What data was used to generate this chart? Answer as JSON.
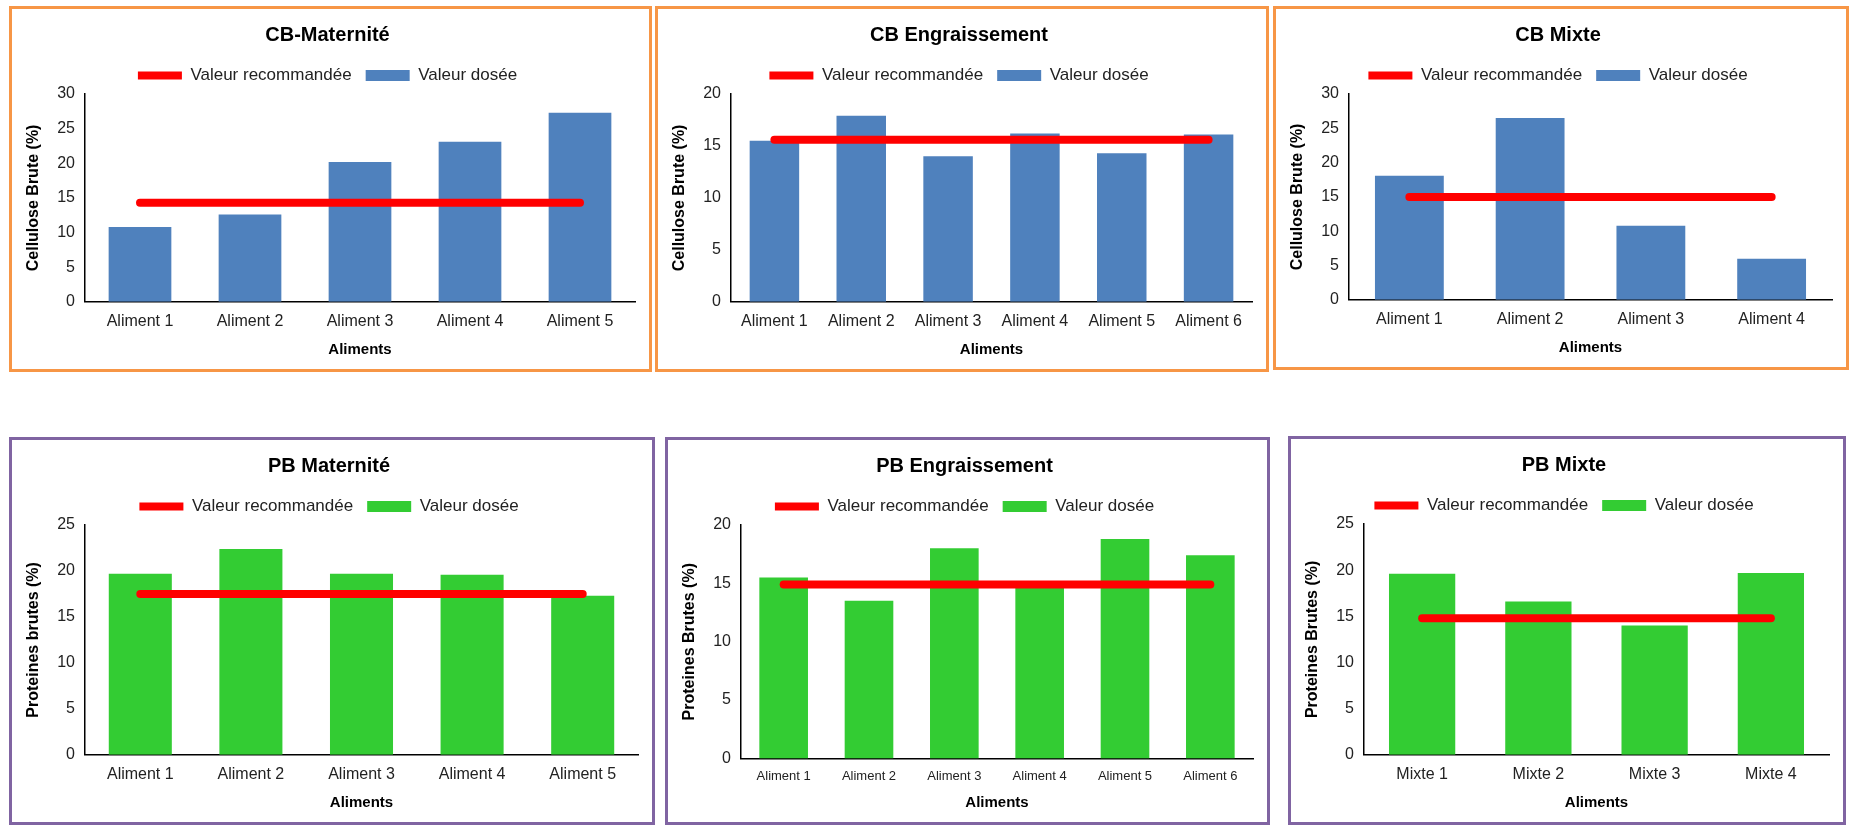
{
  "chart_data": [
    {
      "type": "bar",
      "title": "CB-Maternité",
      "xlabel": "Aliments",
      "ylabel": "Cellulose Brute (%)",
      "categories": [
        "Aliment 1",
        "Aliment 2",
        "Aliment 3",
        "Aliment 4",
        "Aliment 5"
      ],
      "series": [
        {
          "name": "Valeur dosée",
          "color": "#4f81bd",
          "values": [
            10.8,
            12.6,
            20.2,
            23.1,
            27.3
          ]
        },
        {
          "name": "Valeur recommandée",
          "type": "line",
          "color": "#ff0000",
          "values": [
            14.3,
            14.3,
            14.3,
            14.3,
            14.3
          ]
        }
      ],
      "ylim": [
        0,
        30
      ],
      "yticks": [
        0,
        5,
        10,
        15,
        20,
        25,
        30
      ],
      "legend": "top",
      "grid": false,
      "marker": "none"
    },
    {
      "type": "bar",
      "title": "CB Engraissement",
      "xlabel": "Aliments",
      "ylabel": "Cellulose Brute (%)",
      "categories": [
        "Aliment 1",
        "Aliment 2",
        "Aliment 3",
        "Aliment 4",
        "Aliment 5",
        "Aliment 6"
      ],
      "series": [
        {
          "name": "Valeur dosée",
          "color": "#4f81bd",
          "values": [
            15.5,
            17.9,
            14.0,
            16.2,
            14.3,
            16.1
          ]
        },
        {
          "name": "Valeur recommandée",
          "type": "line",
          "color": "#ff0000",
          "values": [
            15.6,
            15.6,
            15.6,
            15.6,
            15.6,
            15.6
          ]
        }
      ],
      "ylim": [
        0,
        20
      ],
      "yticks": [
        0,
        5,
        10,
        15,
        20
      ],
      "legend": "top",
      "grid": false,
      "marker": "none"
    },
    {
      "type": "bar",
      "title": "CB Mixte",
      "xlabel": "Aliments",
      "ylabel": "Cellulose Brute (%)",
      "categories": [
        "Aliment 1",
        "Aliment 2",
        "Aliment 3",
        "Aliment 4"
      ],
      "series": [
        {
          "name": "Valeur dosée",
          "color": "#4f81bd",
          "values": [
            18.1,
            26.5,
            10.8,
            6.0
          ]
        },
        {
          "name": "Valeur recommandée",
          "type": "line",
          "color": "#ff0000",
          "values": [
            15.0,
            15.0,
            15.0,
            15.0
          ]
        }
      ],
      "ylim": [
        0,
        30
      ],
      "yticks": [
        0,
        5,
        10,
        15,
        20,
        25,
        30
      ],
      "legend": "top",
      "grid": false,
      "marker": "none"
    },
    {
      "type": "bar",
      "title": "PB Maternité",
      "xlabel": "Aliments",
      "ylabel": "Proteines brutes (%)",
      "categories": [
        "Aliment 1",
        "Aliment 2",
        "Aliment 3",
        "Aliment 4",
        "Aliment 5"
      ],
      "series": [
        {
          "name": "Valeur dosée",
          "color": "#33cc33",
          "values": [
            19.7,
            22.4,
            19.7,
            19.6,
            17.3
          ]
        },
        {
          "name": "Valeur recommandée",
          "type": "line",
          "color": "#ff0000",
          "values": [
            17.5,
            17.5,
            17.5,
            17.5,
            17.5
          ]
        }
      ],
      "ylim": [
        0,
        25
      ],
      "yticks": [
        0,
        5,
        10,
        15,
        20,
        25
      ],
      "legend": "top",
      "grid": false,
      "marker": "none"
    },
    {
      "type": "bar",
      "title": "PB Engraissement",
      "xlabel": "Aliments",
      "ylabel": "Proteines Brutes (%)",
      "categories": [
        "Aliment 1",
        "Aliment 2",
        "Aliment 3",
        "Aliment 4",
        "Aliment 5",
        "Aliment 6"
      ],
      "series": [
        {
          "name": "Valeur dosée",
          "color": "#33cc33",
          "values": [
            15.5,
            13.5,
            18.0,
            14.8,
            18.8,
            17.4
          ]
        },
        {
          "name": "Valeur recommandée",
          "type": "line",
          "color": "#ff0000",
          "values": [
            14.9,
            14.9,
            14.9,
            14.9,
            14.9,
            14.9
          ]
        }
      ],
      "ylim": [
        0,
        20
      ],
      "yticks": [
        0,
        5,
        10,
        15,
        20
      ],
      "legend": "top",
      "grid": false,
      "marker": "none"
    },
    {
      "type": "bar",
      "title": "PB Mixte",
      "xlabel": "Aliments",
      "ylabel": "Proteines Brutes (%)",
      "categories": [
        "Mixte 1",
        "Mixte 2",
        "Mixte 3",
        "Mixte 4"
      ],
      "series": [
        {
          "name": "Valeur dosée",
          "color": "#33cc33",
          "values": [
            19.6,
            16.6,
            14.0,
            19.7
          ]
        },
        {
          "name": "Valeur recommandée",
          "type": "line",
          "color": "#ff0000",
          "values": [
            14.8,
            14.8,
            14.8,
            14.8
          ]
        }
      ],
      "ylim": [
        0,
        25
      ],
      "yticks": [
        0,
        5,
        10,
        15,
        20,
        25
      ],
      "legend": "top",
      "grid": false,
      "marker": "none"
    }
  ]
}
